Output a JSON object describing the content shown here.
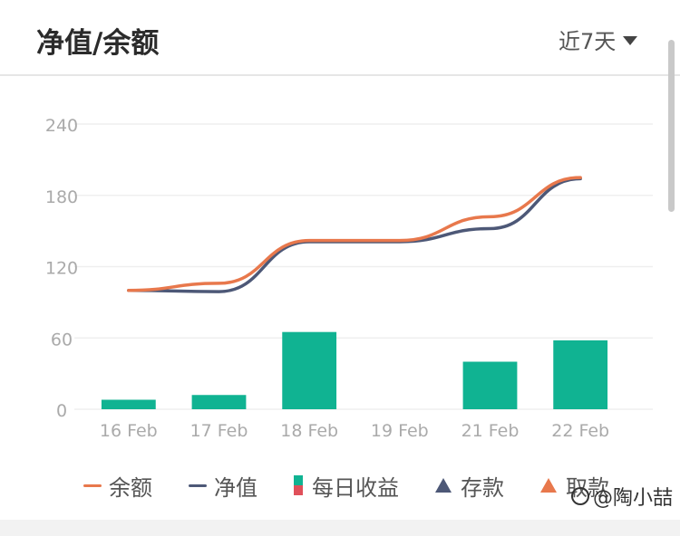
{
  "header": {
    "title": "净值/余额",
    "range_label": "近7天"
  },
  "colors": {
    "balance": "#e8784c",
    "nav": "#4d5877",
    "income_pos": "#10b392",
    "income_neg": "#e0505a",
    "deposit": "#4d5877",
    "withdraw": "#e8784c",
    "grid": "#efefef",
    "axis_text": "#aaaaaa"
  },
  "chart_data": {
    "type": "bar+line",
    "categories": [
      "16 Feb",
      "17 Feb",
      "18 Feb",
      "19 Feb",
      "21 Feb",
      "22 Feb"
    ],
    "ylim": [
      0,
      240
    ],
    "yticks": [
      0,
      60,
      120,
      180,
      240
    ],
    "series": [
      {
        "name": "余额",
        "type": "line",
        "values": [
          100,
          106,
          142,
          142,
          162,
          195
        ]
      },
      {
        "name": "净值",
        "type": "line",
        "values": [
          100,
          99,
          141,
          141,
          152,
          194
        ]
      },
      {
        "name": "每日收益",
        "type": "bar",
        "values": [
          8,
          12,
          65,
          0,
          40,
          58
        ]
      }
    ],
    "legend": {
      "position": "bottom",
      "items": [
        {
          "label": "余额",
          "marker": "line",
          "color_key": "balance"
        },
        {
          "label": "净值",
          "marker": "line",
          "color_key": "nav"
        },
        {
          "label": "每日收益",
          "marker": "bar",
          "color_key": "income_pos"
        },
        {
          "label": "存款",
          "marker": "triangle",
          "color_key": "deposit"
        },
        {
          "label": "取款",
          "marker": "triangle",
          "color_key": "withdraw"
        }
      ]
    }
  },
  "watermark": {
    "text": "@陶小喆"
  }
}
